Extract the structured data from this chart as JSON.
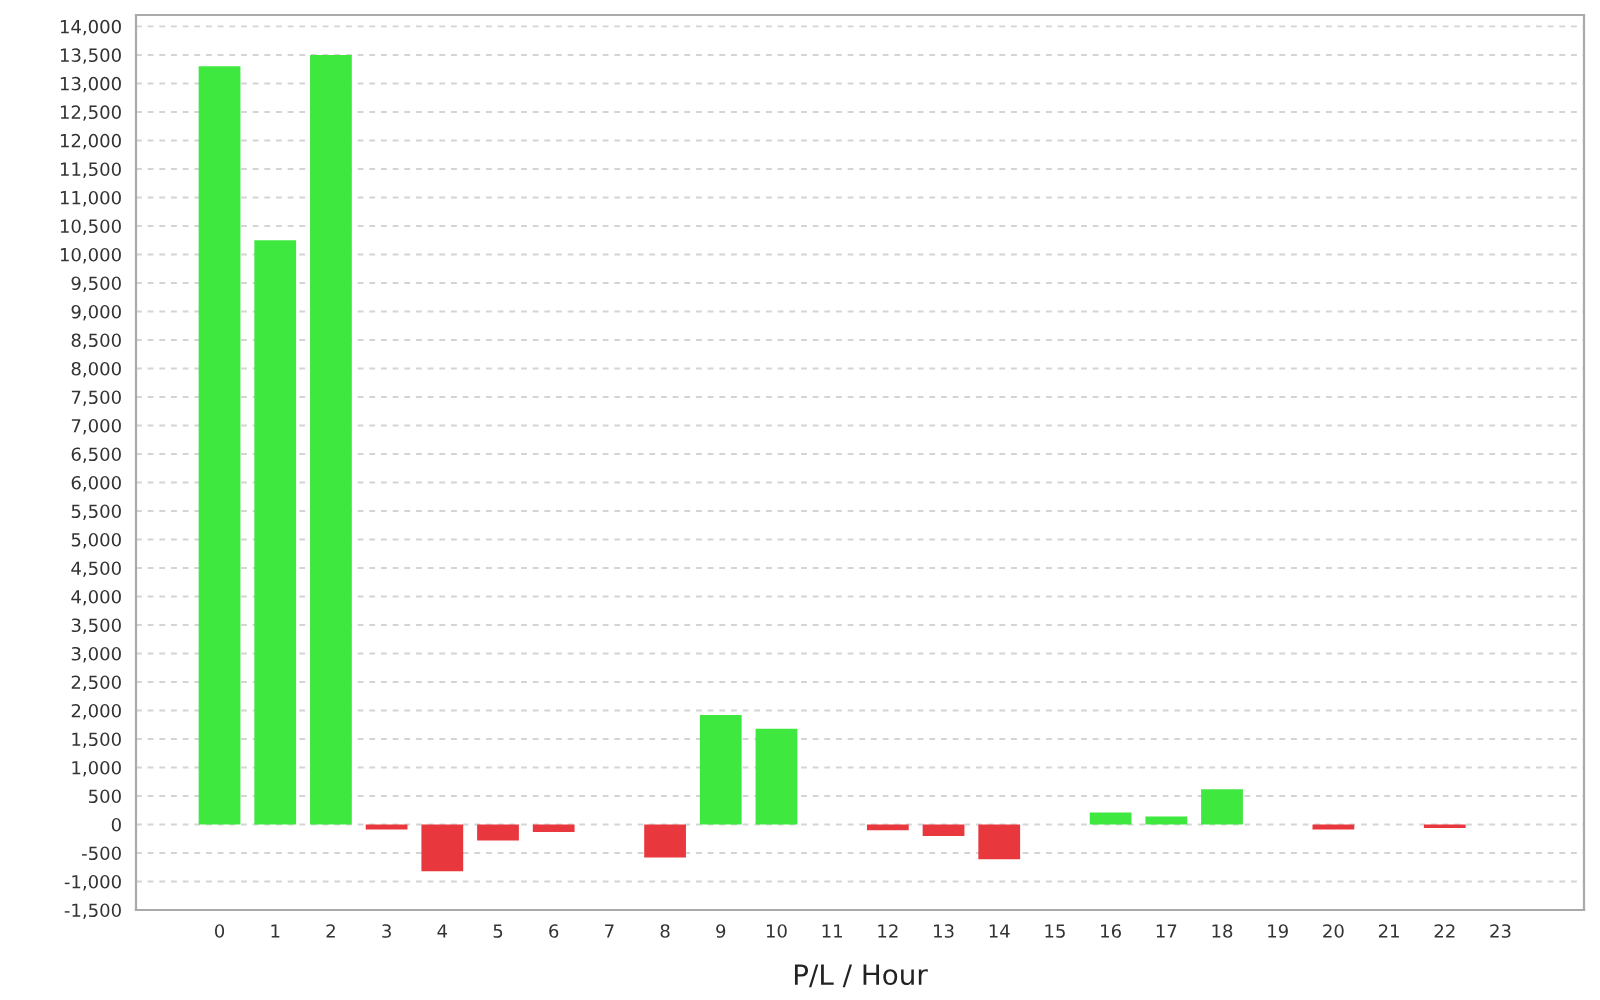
{
  "chart_data": {
    "type": "bar",
    "xlabel": "P/L / Hour",
    "categories": [
      "0",
      "1",
      "2",
      "3",
      "4",
      "5",
      "6",
      "7",
      "8",
      "9",
      "10",
      "11",
      "12",
      "13",
      "14",
      "15",
      "16",
      "17",
      "18",
      "19",
      "20",
      "21",
      "22",
      "23"
    ],
    "values": [
      13300,
      10250,
      13500,
      -90,
      -820,
      -280,
      -130,
      null,
      -580,
      1920,
      1680,
      null,
      -100,
      -200,
      -610,
      null,
      210,
      140,
      620,
      null,
      -90,
      null,
      -60,
      null
    ],
    "colors": [
      "#3fe83f",
      "#3fe83f",
      "#3fe83f",
      "#e8383d",
      "#e8383d",
      "#e8383d",
      "#e8383d",
      null,
      "#e8383d",
      "#3fe83f",
      "#3fe83f",
      null,
      "#e8383d",
      "#e8383d",
      "#e8383d",
      null,
      "#3fe83f",
      "#3fe83f",
      "#3fe83f",
      null,
      "#e8383d",
      null,
      "#e8383d",
      null
    ],
    "ylim": [
      -1500,
      14200
    ],
    "yticks": [
      {
        "value": -1500,
        "label": "-1,500"
      },
      {
        "value": -1000,
        "label": "-1,000"
      },
      {
        "value": -500,
        "label": "-500"
      },
      0,
      500,
      {
        "value": 1000,
        "label": "1,000"
      },
      {
        "value": 1500,
        "label": "1,500"
      },
      {
        "value": 2000,
        "label": "2,000"
      },
      {
        "value": 2500,
        "label": "2,500"
      },
      {
        "value": 3000,
        "label": "3,000"
      },
      {
        "value": 3500,
        "label": "3,500"
      },
      {
        "value": 4000,
        "label": "4,000"
      },
      {
        "value": 4500,
        "label": "4,500"
      },
      {
        "value": 5000,
        "label": "5,000"
      },
      {
        "value": 5500,
        "label": "5,500"
      },
      {
        "value": 6000,
        "label": "6,000"
      },
      {
        "value": 6500,
        "label": "6,500"
      },
      {
        "value": 7000,
        "label": "7,000"
      },
      {
        "value": 7500,
        "label": "7,500"
      },
      {
        "value": 8000,
        "label": "8,000"
      },
      {
        "value": 8500,
        "label": "8,500"
      },
      {
        "value": 9000,
        "label": "9,000"
      },
      {
        "value": 9500,
        "label": "9,500"
      },
      {
        "value": 10000,
        "label": "10,000"
      },
      {
        "value": 10500,
        "label": "10,500"
      },
      {
        "value": 11000,
        "label": "11,000"
      },
      {
        "value": 11500,
        "label": "11,500"
      },
      {
        "value": 12000,
        "label": "12,000"
      },
      {
        "value": 12500,
        "label": "12,500"
      },
      {
        "value": 13000,
        "label": "13,000"
      },
      {
        "value": 13500,
        "label": "13,500"
      },
      {
        "value": 14000,
        "label": "14,000"
      }
    ],
    "grid": "y"
  }
}
